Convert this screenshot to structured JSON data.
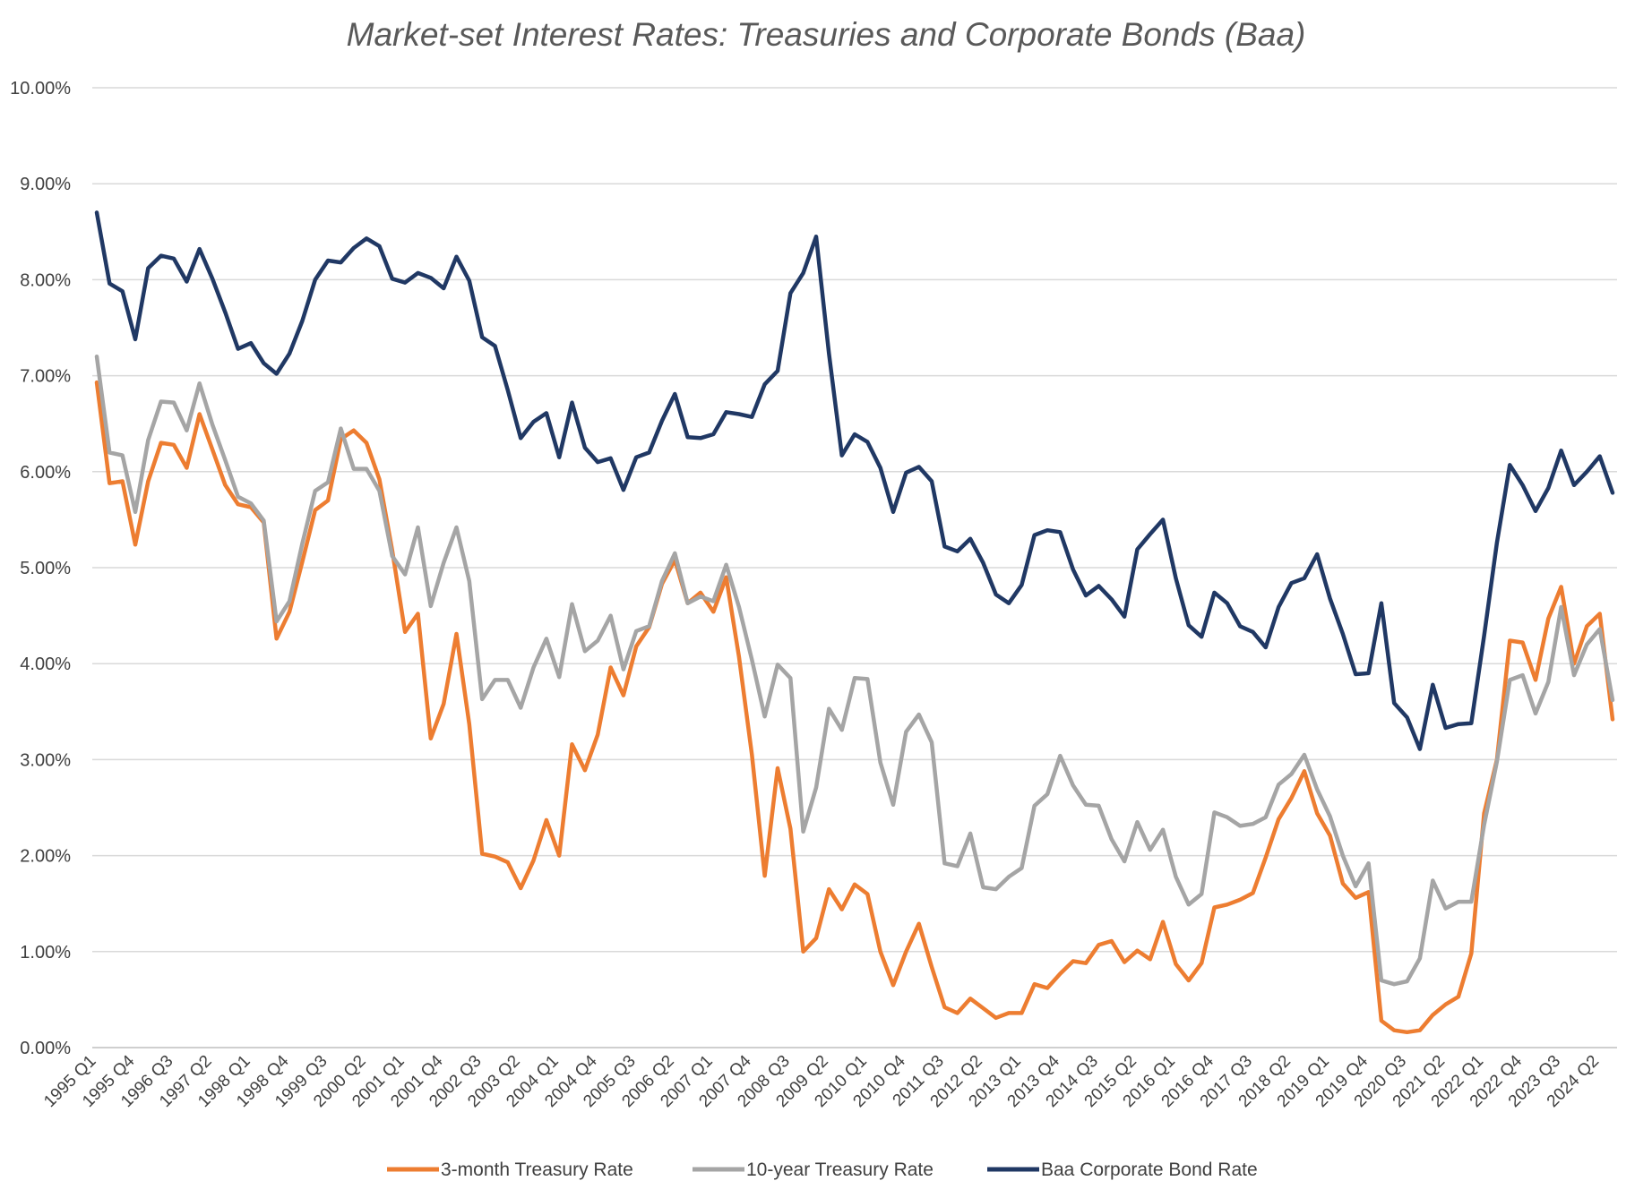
{
  "chart_data": {
    "type": "line",
    "title": "Market-set Interest Rates: Treasuries and Corporate Bonds (Baa)",
    "xlabel": "",
    "ylabel": "",
    "ylim": [
      0,
      10
    ],
    "y_ticks": [
      "0.00%",
      "1.00%",
      "2.00%",
      "3.00%",
      "4.00%",
      "5.00%",
      "6.00%",
      "7.00%",
      "8.00%",
      "9.00%",
      "10.00%"
    ],
    "grid": true,
    "legend_position": "bottom",
    "x_tick_labels": [
      "1995 Q1",
      "1995 Q4",
      "1996 Q3",
      "1997 Q2",
      "1998 Q1",
      "1998 Q4",
      "1999 Q3",
      "2000 Q2",
      "2001 Q1",
      "2001 Q4",
      "2002 Q3",
      "2003 Q2",
      "2004 Q1",
      "2004 Q4",
      "2005 Q3",
      "2006 Q2",
      "2007 Q1",
      "2007 Q4",
      "2008 Q3",
      "2009 Q2",
      "2010 Q1",
      "2010 Q4",
      "2011 Q3",
      "2012 Q2",
      "2013 Q1",
      "2013 Q4",
      "2014 Q3",
      "2015 Q2",
      "2016 Q1",
      "2016 Q4",
      "2017 Q3",
      "2018 Q2",
      "2019 Q1",
      "2019 Q4",
      "2020 Q3",
      "2021 Q2",
      "2022 Q1",
      "2022 Q4",
      "2023 Q3",
      "2024 Q2"
    ],
    "x": [
      "1995 Q1",
      "1995 Q2",
      "1995 Q3",
      "1995 Q4",
      "1996 Q1",
      "1996 Q2",
      "1996 Q3",
      "1996 Q4",
      "1997 Q1",
      "1997 Q2",
      "1997 Q3",
      "1997 Q4",
      "1998 Q1",
      "1998 Q2",
      "1998 Q3",
      "1998 Q4",
      "1999 Q1",
      "1999 Q2",
      "1999 Q3",
      "1999 Q4",
      "2000 Q1",
      "2000 Q2",
      "2000 Q3",
      "2000 Q4",
      "2001 Q1",
      "2001 Q2",
      "2001 Q3",
      "2001 Q4",
      "2002 Q1",
      "2002 Q2",
      "2002 Q3",
      "2002 Q4",
      "2003 Q1",
      "2003 Q2",
      "2003 Q3",
      "2003 Q4",
      "2004 Q1",
      "2004 Q2",
      "2004 Q3",
      "2004 Q4",
      "2005 Q1",
      "2005 Q2",
      "2005 Q3",
      "2005 Q4",
      "2006 Q1",
      "2006 Q2",
      "2006 Q3",
      "2006 Q4",
      "2007 Q1",
      "2007 Q2",
      "2007 Q3",
      "2007 Q4",
      "2008 Q1",
      "2008 Q2",
      "2008 Q3",
      "2008 Q4",
      "2009 Q1",
      "2009 Q2",
      "2009 Q3",
      "2009 Q4",
      "2010 Q1",
      "2010 Q2",
      "2010 Q3",
      "2010 Q4",
      "2011 Q1",
      "2011 Q2",
      "2011 Q3",
      "2011 Q4",
      "2012 Q1",
      "2012 Q2",
      "2012 Q3",
      "2012 Q4",
      "2013 Q1",
      "2013 Q2",
      "2013 Q3",
      "2013 Q4",
      "2014 Q1",
      "2014 Q2",
      "2014 Q3",
      "2014 Q4",
      "2015 Q1",
      "2015 Q2",
      "2015 Q3",
      "2015 Q4",
      "2016 Q1",
      "2016 Q2",
      "2016 Q3",
      "2016 Q4",
      "2017 Q1",
      "2017 Q2",
      "2017 Q3",
      "2017 Q4",
      "2018 Q1",
      "2018 Q2",
      "2018 Q3",
      "2018 Q4",
      "2019 Q1",
      "2019 Q2",
      "2019 Q3",
      "2019 Q4",
      "2020 Q1",
      "2020 Q2",
      "2020 Q3",
      "2020 Q4",
      "2021 Q1",
      "2021 Q2",
      "2021 Q3",
      "2021 Q4",
      "2022 Q1",
      "2022 Q2",
      "2022 Q3",
      "2022 Q4",
      "2023 Q1",
      "2023 Q2",
      "2023 Q3",
      "2023 Q4",
      "2024 Q1",
      "2024 Q2",
      "2024 Q3"
    ],
    "series": [
      {
        "name": "3-month Treasury Rate",
        "color": "#ED7D31",
        "values": [
          6.93,
          5.88,
          5.9,
          5.24,
          5.9,
          6.3,
          6.28,
          6.04,
          6.6,
          6.23,
          5.86,
          5.66,
          5.63,
          5.47,
          4.26,
          4.54,
          5.06,
          5.6,
          5.7,
          6.34,
          6.43,
          6.3,
          5.92,
          5.18,
          4.33,
          4.52,
          3.22,
          3.58,
          4.31,
          3.37,
          2.02,
          1.99,
          1.93,
          1.66,
          1.95,
          2.37,
          2.0,
          3.16,
          2.89,
          3.26,
          3.96,
          3.67,
          4.18,
          4.38,
          4.83,
          5.08,
          4.63,
          4.74,
          4.54,
          4.9,
          4.07,
          3.05,
          1.79,
          2.91,
          2.28,
          1.0,
          1.14,
          1.65,
          1.44,
          1.7,
          1.6,
          1.0,
          0.65,
          1.0,
          1.29,
          0.84,
          0.42,
          0.36,
          0.51,
          0.41,
          0.31,
          0.36,
          0.36,
          0.66,
          0.62,
          0.77,
          0.9,
          0.88,
          1.07,
          1.11,
          0.89,
          1.01,
          0.92,
          1.31,
          0.87,
          0.7,
          0.88,
          1.46,
          1.49,
          1.54,
          1.61,
          1.98,
          2.38,
          2.6,
          2.88,
          2.44,
          2.21,
          1.71,
          1.56,
          1.62,
          0.28,
          0.18,
          0.16,
          0.18,
          0.34,
          0.45,
          0.53,
          0.98,
          2.44,
          3.0,
          4.24,
          4.22,
          3.83,
          4.47,
          4.8,
          4.0,
          4.39,
          4.52,
          3.42
        ]
      },
      {
        "name": "10-year Treasury Rate",
        "color": "#A5A5A5",
        "values": [
          7.2,
          6.2,
          6.17,
          5.58,
          6.33,
          6.73,
          6.72,
          6.43,
          6.92,
          6.49,
          6.12,
          5.74,
          5.67,
          5.49,
          4.44,
          4.65,
          5.25,
          5.8,
          5.89,
          6.45,
          6.03,
          6.03,
          5.8,
          5.12,
          4.93,
          5.42,
          4.6,
          5.05,
          5.42,
          4.86,
          3.63,
          3.83,
          3.83,
          3.54,
          3.96,
          4.26,
          3.86,
          4.62,
          4.13,
          4.24,
          4.5,
          3.94,
          4.34,
          4.39,
          4.86,
          5.15,
          4.63,
          4.7,
          4.65,
          5.03,
          4.59,
          4.04,
          3.45,
          3.99,
          3.85,
          2.25,
          2.71,
          3.53,
          3.31,
          3.85,
          3.84,
          2.97,
          2.53,
          3.29,
          3.47,
          3.18,
          1.92,
          1.89,
          2.23,
          1.67,
          1.65,
          1.78,
          1.87,
          2.52,
          2.64,
          3.04,
          2.73,
          2.53,
          2.52,
          2.17,
          1.94,
          2.35,
          2.06,
          2.27,
          1.78,
          1.49,
          1.6,
          2.45,
          2.4,
          2.31,
          2.33,
          2.4,
          2.74,
          2.85,
          3.05,
          2.69,
          2.41,
          2.0,
          1.68,
          1.92,
          0.7,
          0.66,
          0.69,
          0.93,
          1.74,
          1.45,
          1.52,
          1.52,
          2.32,
          2.98,
          3.83,
          3.88,
          3.48,
          3.81,
          4.59,
          3.88,
          4.2,
          4.36,
          3.62
        ]
      },
      {
        "name": "Baa Corporate Bond Rate",
        "color": "#203864",
        "values": [
          8.7,
          7.96,
          7.88,
          7.38,
          8.12,
          8.25,
          8.22,
          7.98,
          8.32,
          8.01,
          7.66,
          7.28,
          7.34,
          7.13,
          7.02,
          7.23,
          7.57,
          8.0,
          8.2,
          8.18,
          8.33,
          8.43,
          8.35,
          8.01,
          7.97,
          8.07,
          8.02,
          7.91,
          8.24,
          7.99,
          7.4,
          7.31,
          6.85,
          6.35,
          6.52,
          6.61,
          6.15,
          6.72,
          6.25,
          6.1,
          6.14,
          5.81,
          6.15,
          6.2,
          6.53,
          6.81,
          6.36,
          6.35,
          6.39,
          6.62,
          6.6,
          6.57,
          6.91,
          7.05,
          7.86,
          8.07,
          8.45,
          7.23,
          6.17,
          6.39,
          6.31,
          6.04,
          5.58,
          5.99,
          6.05,
          5.9,
          5.22,
          5.17,
          5.3,
          5.05,
          4.72,
          4.63,
          4.82,
          5.34,
          5.39,
          5.37,
          4.98,
          4.71,
          4.81,
          4.67,
          4.49,
          5.19,
          5.35,
          5.5,
          4.89,
          4.4,
          4.28,
          4.74,
          4.63,
          4.39,
          4.33,
          4.17,
          4.59,
          4.84,
          4.89,
          5.14,
          4.68,
          4.31,
          3.89,
          3.9,
          4.63,
          3.59,
          3.44,
          3.11,
          3.78,
          3.33,
          3.37,
          3.38,
          4.29,
          5.26,
          6.07,
          5.86,
          5.59,
          5.83,
          6.22,
          5.86,
          6.0,
          6.16,
          5.78
        ]
      }
    ]
  }
}
